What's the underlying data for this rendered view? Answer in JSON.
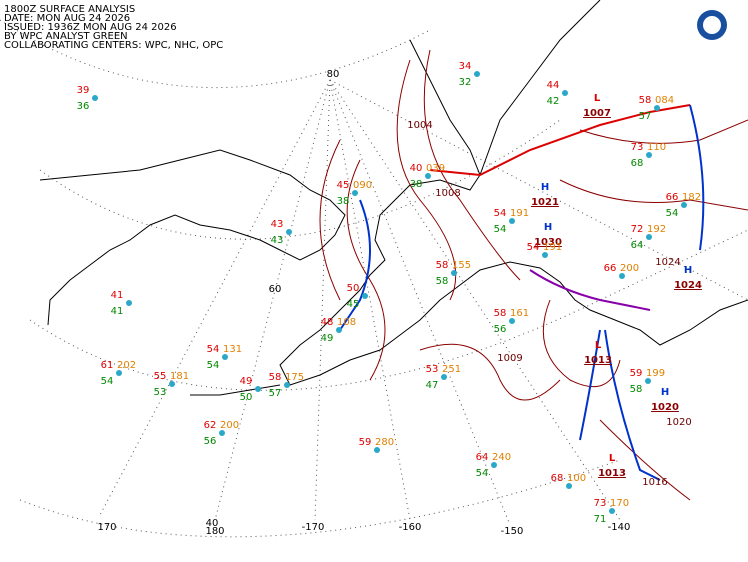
{
  "header": {
    "lines": [
      "1800Z SURFACE ANALYSIS",
      "DATE: MON AUG 24 2026",
      "ISSUED: 1936Z MON AUG 24 2026",
      "BY WPC ANALYST GREEN",
      "COLLABORATING CENTERS: WPC, NHC, OPC"
    ]
  },
  "grid_labels": [
    "80",
    "60",
    "40",
    "170",
    "180",
    "-170",
    "-160",
    "-150",
    "-140"
  ],
  "pressure_centers": [
    {
      "symbol": "L",
      "value": "1007"
    },
    {
      "symbol": "L",
      "value": "1013"
    },
    {
      "symbol": "L",
      "value": "1013"
    },
    {
      "symbol": "H",
      "value": "1021"
    },
    {
      "symbol": "H",
      "value": "1030"
    },
    {
      "symbol": "H",
      "value": "1024"
    },
    {
      "symbol": "H",
      "value": "1020"
    }
  ],
  "isobar_labels": [
    "1004",
    "1008",
    "1024",
    "1009",
    "1016",
    "1020"
  ],
  "stations": [
    {
      "temp": "39",
      "dew": "36"
    },
    {
      "temp": "43",
      "dew": "43"
    },
    {
      "temp": "41",
      "dew": "41"
    },
    {
      "temp": "54",
      "dew": "54",
      "pressure": "131"
    },
    {
      "temp": "61",
      "dew": "54",
      "pressure": "202"
    },
    {
      "temp": "55",
      "dew": "53",
      "pressure": "181"
    },
    {
      "temp": "49",
      "dew": "50"
    },
    {
      "temp": "58",
      "dew": "57",
      "pressure": "175"
    },
    {
      "temp": "62",
      "dew": "56",
      "pressure": "200"
    },
    {
      "temp": "59",
      "pressure": "280"
    },
    {
      "temp": "53",
      "dew": "47",
      "pressure": "251"
    },
    {
      "temp": "64",
      "dew": "54",
      "pressure": "240"
    },
    {
      "temp": "68",
      "pressure": "100"
    },
    {
      "temp": "73",
      "dew": "71",
      "pressure": "170"
    },
    {
      "temp": "59",
      "dew": "58",
      "pressure": "199"
    },
    {
      "temp": "54",
      "dew": "54",
      "pressure": "191"
    },
    {
      "temp": "54",
      "pressure": "191"
    },
    {
      "temp": "58",
      "dew": "56",
      "pressure": "161"
    },
    {
      "temp": "50",
      "dew": "45"
    },
    {
      "temp": "48",
      "dew": "49",
      "pressure": "108"
    },
    {
      "temp": "58",
      "dew": "58",
      "pressure": "155"
    },
    {
      "temp": "66",
      "pressure": "200"
    },
    {
      "temp": "72",
      "dew": "64",
      "pressure": "192"
    },
    {
      "temp": "73",
      "dew": "68",
      "pressure": "110"
    },
    {
      "temp": "58",
      "dew": "57",
      "pressure": "084"
    },
    {
      "temp": "66",
      "dew": "54",
      "pressure": "182"
    },
    {
      "temp": "44",
      "dew": "42"
    },
    {
      "temp": "34",
      "dew": "32"
    },
    {
      "temp": "45",
      "dew": "38",
      "pressure": "090"
    },
    {
      "temp": "40",
      "dew": "38",
      "pressure": "039"
    }
  ]
}
